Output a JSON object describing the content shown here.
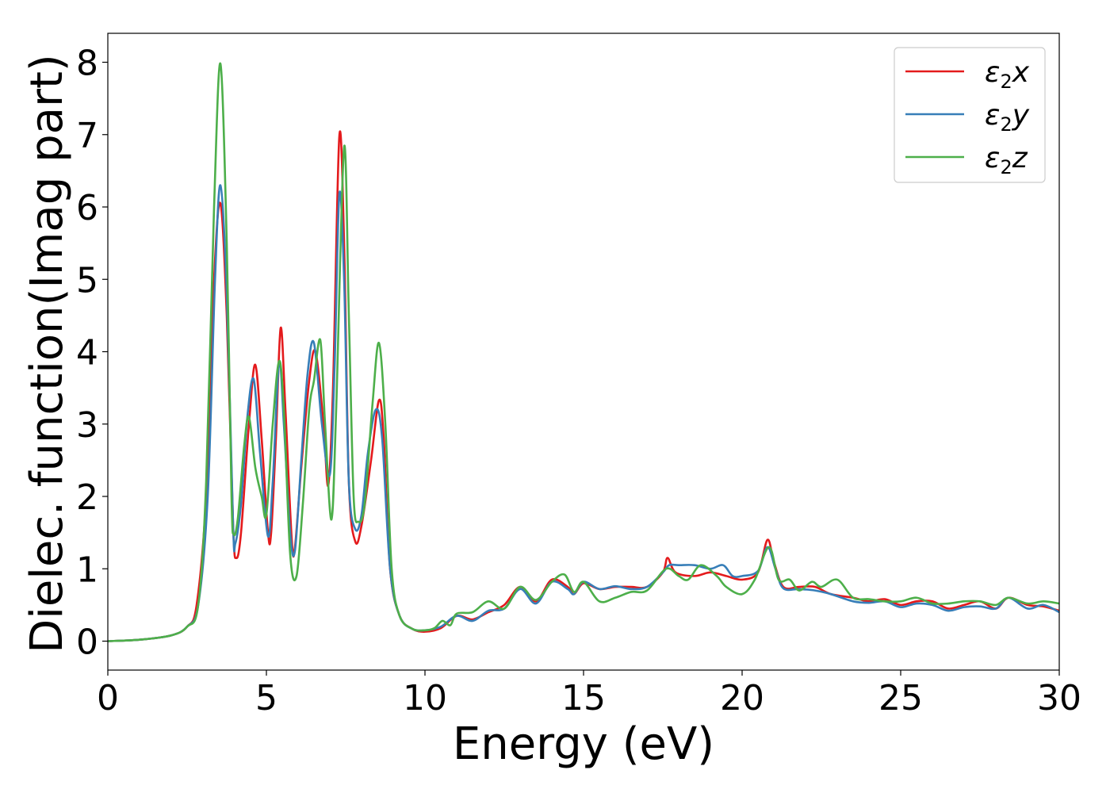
{
  "chart_data": {
    "type": "line",
    "xlabel": "Energy (eV)",
    "ylabel": "Dielec. function(Imag part)",
    "xlim": [
      0,
      30
    ],
    "ylim": [
      -0.4,
      8.4
    ],
    "xticks": [
      "0",
      "5",
      "10",
      "15",
      "20",
      "25",
      "30"
    ],
    "yticks": [
      "0",
      "1",
      "2",
      "3",
      "4",
      "5",
      "6",
      "7",
      "8"
    ],
    "grid": false,
    "legend_position": "top-right",
    "series": [
      {
        "name": "ε2x",
        "label_base": "ε",
        "label_sub": "2",
        "label_var": "x",
        "color": "#e41a1c",
        "points": [
          [
            0,
            0
          ],
          [
            1,
            0.02
          ],
          [
            2,
            0.08
          ],
          [
            2.5,
            0.2
          ],
          [
            2.8,
            0.5
          ],
          [
            3.1,
            2
          ],
          [
            3.35,
            5
          ],
          [
            3.55,
            6.05
          ],
          [
            3.75,
            4.5
          ],
          [
            3.95,
            1.6
          ],
          [
            4.05,
            1.15
          ],
          [
            4.2,
            1.5
          ],
          [
            4.45,
            3.0
          ],
          [
            4.65,
            3.82
          ],
          [
            4.85,
            2.8
          ],
          [
            5.05,
            1.5
          ],
          [
            5.15,
            1.5
          ],
          [
            5.3,
            2.8
          ],
          [
            5.45,
            4.33
          ],
          [
            5.6,
            3.2
          ],
          [
            5.8,
            1.4
          ],
          [
            5.9,
            1.3
          ],
          [
            6.1,
            2.4
          ],
          [
            6.35,
            3.6
          ],
          [
            6.55,
            4.0
          ],
          [
            6.8,
            3.0
          ],
          [
            6.95,
            2.15
          ],
          [
            7.1,
            3.5
          ],
          [
            7.3,
            6.98
          ],
          [
            7.45,
            5.5
          ],
          [
            7.6,
            2.2
          ],
          [
            7.8,
            1.38
          ],
          [
            8.0,
            1.6
          ],
          [
            8.3,
            2.5
          ],
          [
            8.55,
            3.33
          ],
          [
            8.7,
            2.8
          ],
          [
            8.9,
            1.0
          ],
          [
            9.2,
            0.35
          ],
          [
            9.6,
            0.17
          ],
          [
            10,
            0.13
          ],
          [
            10.5,
            0.18
          ],
          [
            11,
            0.35
          ],
          [
            11.5,
            0.3
          ],
          [
            12,
            0.4
          ],
          [
            12.5,
            0.5
          ],
          [
            13,
            0.75
          ],
          [
            13.5,
            0.55
          ],
          [
            14,
            0.85
          ],
          [
            14.5,
            0.75
          ],
          [
            14.7,
            0.65
          ],
          [
            15,
            0.8
          ],
          [
            15.5,
            0.72
          ],
          [
            16,
            0.75
          ],
          [
            16.5,
            0.75
          ],
          [
            17,
            0.75
          ],
          [
            17.5,
            0.95
          ],
          [
            17.65,
            1.15
          ],
          [
            17.9,
            0.95
          ],
          [
            18.5,
            0.9
          ],
          [
            19,
            0.95
          ],
          [
            19.5,
            0.9
          ],
          [
            20,
            0.85
          ],
          [
            20.5,
            0.95
          ],
          [
            20.8,
            1.4
          ],
          [
            21,
            1.1
          ],
          [
            21.3,
            0.75
          ],
          [
            21.8,
            0.75
          ],
          [
            22.3,
            0.75
          ],
          [
            22.8,
            0.65
          ],
          [
            23.5,
            0.6
          ],
          [
            24,
            0.55
          ],
          [
            24.5,
            0.58
          ],
          [
            25,
            0.5
          ],
          [
            25.5,
            0.55
          ],
          [
            26,
            0.55
          ],
          [
            26.5,
            0.45
          ],
          [
            27,
            0.5
          ],
          [
            27.5,
            0.55
          ],
          [
            28,
            0.45
          ],
          [
            28.4,
            0.6
          ],
          [
            29,
            0.5
          ],
          [
            29.5,
            0.48
          ],
          [
            30,
            0.42
          ]
        ]
      },
      {
        "name": "ε2y",
        "label_base": "ε",
        "label_sub": "2",
        "label_var": "y",
        "color": "#377eb8",
        "points": [
          [
            0,
            0
          ],
          [
            1,
            0.02
          ],
          [
            2,
            0.08
          ],
          [
            2.5,
            0.2
          ],
          [
            2.85,
            0.5
          ],
          [
            3.15,
            2
          ],
          [
            3.38,
            5
          ],
          [
            3.55,
            6.3
          ],
          [
            3.75,
            4.8
          ],
          [
            3.95,
            1.6
          ],
          [
            4.02,
            1.35
          ],
          [
            4.2,
            1.9
          ],
          [
            4.4,
            3.1
          ],
          [
            4.6,
            3.62
          ],
          [
            4.8,
            2.6
          ],
          [
            5.05,
            1.45
          ],
          [
            5.2,
            2.2
          ],
          [
            5.4,
            3.85
          ],
          [
            5.55,
            3.0
          ],
          [
            5.75,
            1.5
          ],
          [
            5.9,
            1.25
          ],
          [
            6.1,
            2.5
          ],
          [
            6.3,
            3.7
          ],
          [
            6.5,
            4.12
          ],
          [
            6.75,
            3.0
          ],
          [
            7.0,
            2.3
          ],
          [
            7.15,
            3.8
          ],
          [
            7.3,
            6.18
          ],
          [
            7.45,
            5.0
          ],
          [
            7.6,
            2.2
          ],
          [
            7.8,
            1.55
          ],
          [
            8.0,
            1.75
          ],
          [
            8.2,
            2.6
          ],
          [
            8.45,
            3.2
          ],
          [
            8.65,
            2.8
          ],
          [
            8.9,
            1.0
          ],
          [
            9.2,
            0.35
          ],
          [
            9.6,
            0.17
          ],
          [
            10,
            0.15
          ],
          [
            10.5,
            0.2
          ],
          [
            11,
            0.35
          ],
          [
            11.5,
            0.28
          ],
          [
            12,
            0.42
          ],
          [
            12.5,
            0.45
          ],
          [
            13,
            0.72
          ],
          [
            13.5,
            0.52
          ],
          [
            14,
            0.82
          ],
          [
            14.5,
            0.72
          ],
          [
            14.7,
            0.65
          ],
          [
            15,
            0.82
          ],
          [
            15.5,
            0.72
          ],
          [
            16,
            0.76
          ],
          [
            16.5,
            0.72
          ],
          [
            17,
            0.75
          ],
          [
            17.5,
            0.95
          ],
          [
            17.7,
            1.05
          ],
          [
            18,
            1.05
          ],
          [
            18.5,
            1.05
          ],
          [
            19,
            1.0
          ],
          [
            19.4,
            1.05
          ],
          [
            19.7,
            0.9
          ],
          [
            20,
            0.9
          ],
          [
            20.5,
            0.97
          ],
          [
            20.8,
            1.3
          ],
          [
            21.05,
            1.0
          ],
          [
            21.3,
            0.73
          ],
          [
            21.8,
            0.72
          ],
          [
            22.3,
            0.7
          ],
          [
            22.8,
            0.65
          ],
          [
            23.5,
            0.55
          ],
          [
            24,
            0.53
          ],
          [
            24.5,
            0.55
          ],
          [
            25,
            0.47
          ],
          [
            25.5,
            0.52
          ],
          [
            26,
            0.5
          ],
          [
            26.5,
            0.42
          ],
          [
            27,
            0.47
          ],
          [
            27.5,
            0.48
          ],
          [
            28,
            0.45
          ],
          [
            28.4,
            0.6
          ],
          [
            29,
            0.45
          ],
          [
            29.5,
            0.5
          ],
          [
            30,
            0.4
          ]
        ]
      },
      {
        "name": "ε2z",
        "label_base": "ε",
        "label_sub": "2",
        "label_var": "z",
        "color": "#4daf4a",
        "points": [
          [
            0,
            0
          ],
          [
            1,
            0.02
          ],
          [
            2,
            0.08
          ],
          [
            2.5,
            0.2
          ],
          [
            2.85,
            0.5
          ],
          [
            3.1,
            2.2
          ],
          [
            3.35,
            6
          ],
          [
            3.55,
            7.98
          ],
          [
            3.75,
            5.5
          ],
          [
            3.9,
            2
          ],
          [
            3.97,
            1.48
          ],
          [
            4.1,
            1.7
          ],
          [
            4.3,
            2.7
          ],
          [
            4.45,
            3.1
          ],
          [
            4.65,
            2.4
          ],
          [
            4.85,
            2.0
          ],
          [
            5.0,
            1.75
          ],
          [
            5.2,
            3.0
          ],
          [
            5.4,
            3.87
          ],
          [
            5.55,
            3.2
          ],
          [
            5.75,
            1.2
          ],
          [
            5.95,
            0.9
          ],
          [
            6.15,
            1.9
          ],
          [
            6.35,
            3.2
          ],
          [
            6.5,
            3.6
          ],
          [
            6.7,
            4.16
          ],
          [
            6.85,
            3.0
          ],
          [
            7.05,
            1.68
          ],
          [
            7.2,
            3.2
          ],
          [
            7.45,
            6.83
          ],
          [
            7.6,
            4.5
          ],
          [
            7.75,
            2.0
          ],
          [
            7.9,
            1.65
          ],
          [
            8.1,
            1.9
          ],
          [
            8.35,
            3.3
          ],
          [
            8.55,
            4.12
          ],
          [
            8.75,
            3.0
          ],
          [
            8.95,
            1.0
          ],
          [
            9.2,
            0.35
          ],
          [
            9.6,
            0.17
          ],
          [
            10,
            0.15
          ],
          [
            10.3,
            0.18
          ],
          [
            10.55,
            0.28
          ],
          [
            10.8,
            0.22
          ],
          [
            11,
            0.38
          ],
          [
            11.5,
            0.4
          ],
          [
            12,
            0.55
          ],
          [
            12.5,
            0.45
          ],
          [
            13,
            0.75
          ],
          [
            13.5,
            0.57
          ],
          [
            14,
            0.82
          ],
          [
            14.4,
            0.92
          ],
          [
            14.7,
            0.68
          ],
          [
            15,
            0.82
          ],
          [
            15.5,
            0.55
          ],
          [
            16,
            0.6
          ],
          [
            16.5,
            0.68
          ],
          [
            17,
            0.7
          ],
          [
            17.6,
            1.0
          ],
          [
            18,
            0.9
          ],
          [
            18.3,
            0.85
          ],
          [
            18.7,
            1.05
          ],
          [
            19.2,
            0.9
          ],
          [
            19.5,
            0.75
          ],
          [
            20,
            0.65
          ],
          [
            20.4,
            0.85
          ],
          [
            20.85,
            1.3
          ],
          [
            21.15,
            0.85
          ],
          [
            21.5,
            0.85
          ],
          [
            21.8,
            0.7
          ],
          [
            22.2,
            0.82
          ],
          [
            22.5,
            0.75
          ],
          [
            23,
            0.85
          ],
          [
            23.5,
            0.6
          ],
          [
            24,
            0.58
          ],
          [
            24.5,
            0.55
          ],
          [
            25,
            0.55
          ],
          [
            25.5,
            0.6
          ],
          [
            26,
            0.52
          ],
          [
            26.5,
            0.52
          ],
          [
            27,
            0.55
          ],
          [
            27.5,
            0.55
          ],
          [
            28,
            0.5
          ],
          [
            28.4,
            0.6
          ],
          [
            29,
            0.52
          ],
          [
            29.5,
            0.55
          ],
          [
            30,
            0.52
          ]
        ]
      }
    ]
  }
}
